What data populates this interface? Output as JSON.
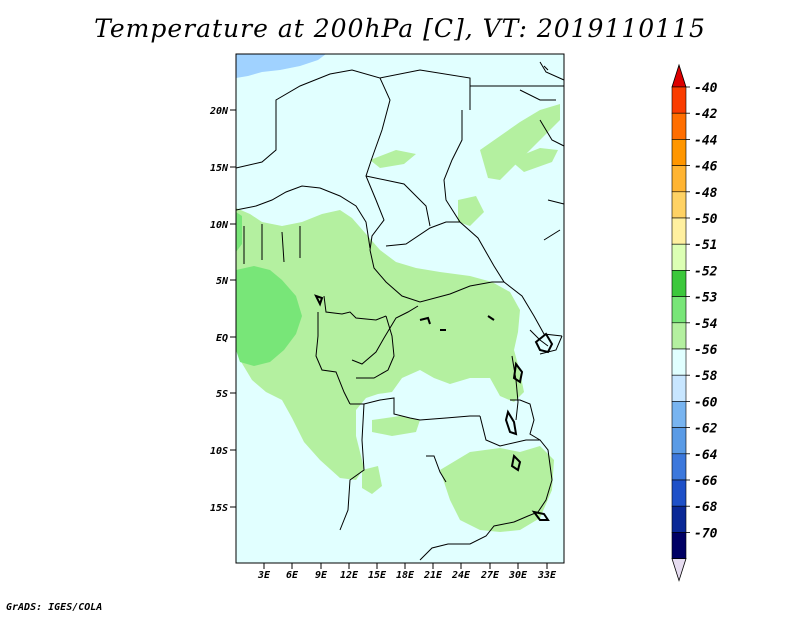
{
  "title": "Temperature at 200hPa [C], VT: 2019110115",
  "footer": "GrADS: IGES/COLA",
  "map": {
    "lat_labels": [
      "20N",
      "15N",
      "10N",
      "5N",
      "EQ",
      "5S",
      "10S",
      "15S"
    ],
    "lon_labels": [
      "3E",
      "6E",
      "9E",
      "12E",
      "15E",
      "18E",
      "21E",
      "24E",
      "27E",
      "30E",
      "33E"
    ],
    "colors": {
      "land_bg": "#e1ffff",
      "water": "#a0d2ff",
      "c_53": "#b4f0a0",
      "c_52": "#78e678",
      "border": "#000000"
    }
  },
  "colorbar": {
    "labels": [
      "-40",
      "-42",
      "-44",
      "-46",
      "-48",
      "-50",
      "-51",
      "-52",
      "-53",
      "-54",
      "-56",
      "-58",
      "-60",
      "-62",
      "-64",
      "-66",
      "-68",
      "-70"
    ],
    "colors": [
      "#fa3c00",
      "#ff6e00",
      "#ff9600",
      "#ffb432",
      "#ffd264",
      "#fff0a0",
      "#dcffb4",
      "#3cc83c",
      "#78e678",
      "#b4f0a0",
      "#e1ffff",
      "#c8e6ff",
      "#78b4f0",
      "#5a9be6",
      "#3c78dc",
      "#1e50c8",
      "#0a2896",
      "#000064"
    ],
    "tip_top_color": "#dc0000",
    "tip_bottom_color": "#e6dcf0"
  }
}
